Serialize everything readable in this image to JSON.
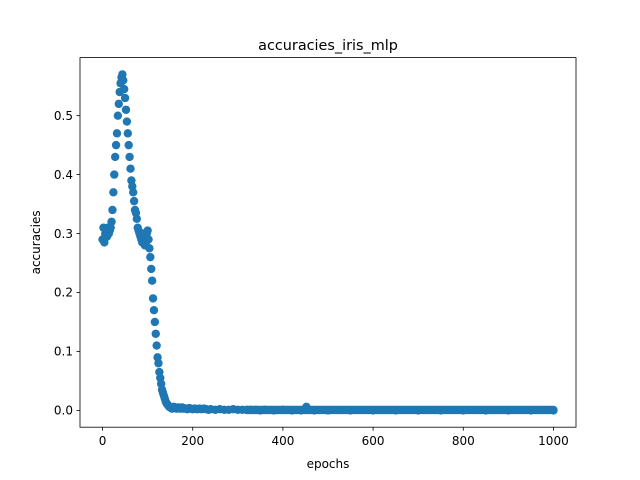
{
  "chart_data": {
    "type": "scatter",
    "title": "accuracies_iris_mlp",
    "xlabel": "epochs",
    "ylabel": "accuracies",
    "xlim": [
      -50,
      1050
    ],
    "ylim": [
      -0.0285,
      0.5985
    ],
    "xticks": [
      0,
      200,
      400,
      600,
      800,
      1000
    ],
    "xtick_labels": [
      "0",
      "200",
      "400",
      "600",
      "800",
      "1000"
    ],
    "yticks": [
      0.0,
      0.1,
      0.2,
      0.3,
      0.4,
      0.5
    ],
    "ytick_labels": [
      "0.0",
      "0.1",
      "0.2",
      "0.3",
      "0.4",
      "0.5"
    ],
    "grid": false,
    "legend": "none",
    "point_color": "#1f77b4",
    "series": [
      {
        "x": [
          0,
          2,
          4,
          6,
          8,
          10,
          12,
          14,
          16,
          18,
          20,
          22,
          24,
          26,
          28,
          30,
          32,
          34,
          36,
          38,
          40,
          42,
          44,
          46,
          48,
          50,
          52,
          54,
          56,
          58,
          60,
          62,
          64,
          66,
          68,
          70,
          72,
          74,
          76,
          78,
          80,
          82,
          84,
          86,
          88,
          90,
          92,
          94,
          96,
          98,
          100,
          102,
          104,
          106,
          108,
          110,
          112,
          114,
          116,
          118,
          120,
          122,
          124,
          126,
          128,
          130,
          132,
          134,
          136,
          138,
          140,
          142,
          144,
          146,
          148,
          150,
          152,
          154,
          156,
          158,
          160,
          162,
          164,
          166,
          168,
          170,
          172,
          174,
          176,
          178,
          180,
          184,
          188,
          192,
          196,
          200,
          205,
          210,
          215,
          220,
          225,
          230,
          235,
          240,
          250,
          260,
          270,
          280,
          290,
          300,
          310,
          320,
          330,
          340,
          350,
          360,
          380,
          400,
          420,
          440,
          452,
          470,
          500,
          550,
          600,
          650,
          700,
          750,
          800,
          850,
          900,
          950,
          1000
        ],
        "y": [
          0.29,
          0.31,
          0.285,
          0.3,
          0.305,
          0.295,
          0.31,
          0.3,
          0.305,
          0.31,
          0.32,
          0.34,
          0.37,
          0.4,
          0.43,
          0.45,
          0.47,
          0.5,
          0.52,
          0.54,
          0.555,
          0.565,
          0.57,
          0.56,
          0.545,
          0.53,
          0.51,
          0.49,
          0.47,
          0.45,
          0.43,
          0.41,
          0.39,
          0.38,
          0.37,
          0.355,
          0.34,
          0.335,
          0.325,
          0.31,
          0.305,
          0.3,
          0.295,
          0.29,
          0.285,
          0.3,
          0.295,
          0.28,
          0.285,
          0.3,
          0.305,
          0.29,
          0.275,
          0.26,
          0.24,
          0.22,
          0.19,
          0.17,
          0.15,
          0.13,
          0.11,
          0.09,
          0.08,
          0.065,
          0.055,
          0.045,
          0.035,
          0.03,
          0.025,
          0.02,
          0.015,
          0.012,
          0.01,
          0.008,
          0.006,
          0.005,
          0.004,
          0.003,
          0.005,
          0.006,
          0.004,
          0.005,
          0.003,
          0.004,
          0.005,
          0.004,
          0.003,
          0.004,
          0.005,
          0.003,
          0.004,
          0.003,
          0.002,
          0.004,
          0.003,
          0.002,
          0.003,
          0.002,
          0.003,
          0.002,
          0.003,
          0.002,
          0.001,
          0.002,
          0.001,
          0.002,
          0.001,
          0.001,
          0.002,
          0.001,
          0.001,
          0.001,
          0.001,
          0.001,
          0.0,
          0.001,
          0.0,
          0.001,
          0.0,
          0.0,
          0.006,
          0.0,
          0.0,
          0.0,
          0.0,
          0.0,
          0.0,
          0.0,
          0.0,
          0.0,
          0.0,
          0.0,
          0.0
        ]
      }
    ]
  }
}
